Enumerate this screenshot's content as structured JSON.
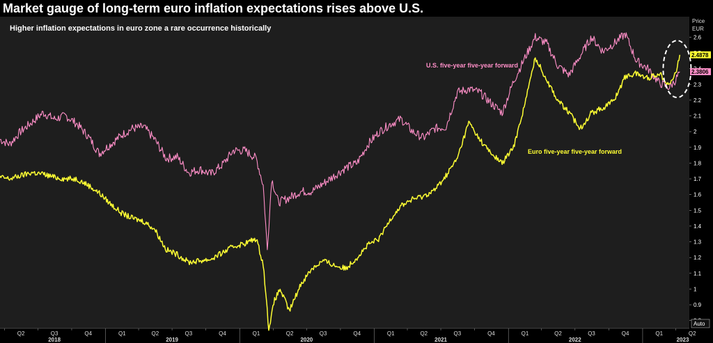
{
  "title": "Market gauge of long-term euro inflation expectations rises above U.S.",
  "colors": {
    "background": "#000000",
    "plot_bg": "#1e1e1e",
    "us": "#ff8fc8",
    "euro": "#ffff33",
    "text": "#ffffff"
  },
  "chart_data": {
    "type": "line",
    "title": "Market gauge of long-term euro inflation expectations rises above U.S.",
    "subtitle": "Higher inflation expectations in euro zone a rare occurrence historically",
    "ylabel": "Price",
    "yunit": "EUR",
    "ylim": [
      0.75,
      2.73
    ],
    "yticks": [
      0.8,
      0.9,
      1,
      1.1,
      1.2,
      1.3,
      1.4,
      1.5,
      1.6,
      1.7,
      1.8,
      1.9,
      2,
      2.1,
      2.2,
      2.3,
      2.4,
      2.5,
      2.6
    ],
    "xlim": [
      "2018-03-20",
      "2023-05-08"
    ],
    "x_quarter_ticks": [
      {
        "date": "2018-04-01",
        "label": "Q2"
      },
      {
        "date": "2018-07-01",
        "label": "Q3"
      },
      {
        "date": "2018-10-01",
        "label": "Q4"
      },
      {
        "date": "2019-01-01",
        "label": "Q1"
      },
      {
        "date": "2019-04-01",
        "label": "Q2"
      },
      {
        "date": "2019-07-01",
        "label": "Q3"
      },
      {
        "date": "2019-10-01",
        "label": "Q4"
      },
      {
        "date": "2020-01-01",
        "label": "Q1"
      },
      {
        "date": "2020-04-01",
        "label": "Q2"
      },
      {
        "date": "2020-07-01",
        "label": "Q3"
      },
      {
        "date": "2020-10-01",
        "label": "Q4"
      },
      {
        "date": "2021-01-01",
        "label": "Q1"
      },
      {
        "date": "2021-04-01",
        "label": "Q2"
      },
      {
        "date": "2021-07-01",
        "label": "Q3"
      },
      {
        "date": "2021-10-01",
        "label": "Q4"
      },
      {
        "date": "2022-01-01",
        "label": "Q1"
      },
      {
        "date": "2022-04-01",
        "label": "Q2"
      },
      {
        "date": "2022-07-01",
        "label": "Q3"
      },
      {
        "date": "2022-10-01",
        "label": "Q4"
      },
      {
        "date": "2023-01-01",
        "label": "Q1"
      },
      {
        "date": "2023-04-01",
        "label": "Q2"
      }
    ],
    "x_years": [
      "2018",
      "2019",
      "2020",
      "2021",
      "2022",
      "2023"
    ],
    "auto_label": "Auto",
    "grid": false,
    "series": [
      {
        "name": "U.S. five-year five-year forward",
        "color": "#ff8fc8",
        "last_value": "2.3806",
        "points": [
          [
            "2018-03-20",
            1.95
          ],
          [
            "2018-04-15",
            1.92
          ],
          [
            "2018-05-15",
            2.0
          ],
          [
            "2018-06-15",
            2.06
          ],
          [
            "2018-07-15",
            2.12
          ],
          [
            "2018-08-15",
            2.08
          ],
          [
            "2018-09-15",
            2.1
          ],
          [
            "2018-10-15",
            2.05
          ],
          [
            "2018-11-15",
            1.97
          ],
          [
            "2018-12-15",
            1.86
          ],
          [
            "2019-01-15",
            1.92
          ],
          [
            "2019-02-15",
            1.98
          ],
          [
            "2019-03-15",
            2.02
          ],
          [
            "2019-04-15",
            2.03
          ],
          [
            "2019-05-15",
            1.95
          ],
          [
            "2019-06-15",
            1.83
          ],
          [
            "2019-07-15",
            1.84
          ],
          [
            "2019-08-15",
            1.74
          ],
          [
            "2019-09-15",
            1.76
          ],
          [
            "2019-10-15",
            1.73
          ],
          [
            "2019-11-15",
            1.79
          ],
          [
            "2019-12-15",
            1.88
          ],
          [
            "2020-01-15",
            1.88
          ],
          [
            "2020-02-15",
            1.83
          ],
          [
            "2020-03-05",
            1.66
          ],
          [
            "2020-03-16",
            1.25
          ],
          [
            "2020-03-28",
            1.7
          ],
          [
            "2020-04-15",
            1.55
          ],
          [
            "2020-05-15",
            1.58
          ],
          [
            "2020-06-15",
            1.62
          ],
          [
            "2020-07-15",
            1.62
          ],
          [
            "2020-08-15",
            1.67
          ],
          [
            "2020-09-15",
            1.72
          ],
          [
            "2020-10-15",
            1.77
          ],
          [
            "2020-11-15",
            1.8
          ],
          [
            "2020-12-15",
            1.92
          ],
          [
            "2021-01-15",
            2.0
          ],
          [
            "2021-02-15",
            2.05
          ],
          [
            "2021-03-15",
            2.08
          ],
          [
            "2021-04-15",
            2.0
          ],
          [
            "2021-05-15",
            1.96
          ],
          [
            "2021-06-15",
            2.02
          ],
          [
            "2021-07-15",
            2.03
          ],
          [
            "2021-08-15",
            2.25
          ],
          [
            "2021-09-15",
            2.27
          ],
          [
            "2021-10-15",
            2.25
          ],
          [
            "2021-11-15",
            2.18
          ],
          [
            "2021-12-15",
            2.12
          ],
          [
            "2022-01-15",
            2.32
          ],
          [
            "2022-02-15",
            2.47
          ],
          [
            "2022-03-15",
            2.6
          ],
          [
            "2022-04-15",
            2.56
          ],
          [
            "2022-05-15",
            2.42
          ],
          [
            "2022-06-15",
            2.36
          ],
          [
            "2022-07-15",
            2.48
          ],
          [
            "2022-08-15",
            2.6
          ],
          [
            "2022-09-15",
            2.51
          ],
          [
            "2022-10-15",
            2.56
          ],
          [
            "2022-11-15",
            2.62
          ],
          [
            "2022-12-15",
            2.45
          ],
          [
            "2023-01-15",
            2.4
          ],
          [
            "2023-02-15",
            2.31
          ],
          [
            "2023-03-15",
            2.28
          ],
          [
            "2023-04-01",
            2.33
          ],
          [
            "2023-04-12",
            2.3806
          ]
        ]
      },
      {
        "name": "Euro five-year five-year forward",
        "color": "#ffff33",
        "last_value": "2.4878",
        "points": [
          [
            "2018-03-20",
            1.71
          ],
          [
            "2018-04-15",
            1.7
          ],
          [
            "2018-05-15",
            1.72
          ],
          [
            "2018-06-15",
            1.74
          ],
          [
            "2018-07-15",
            1.73
          ],
          [
            "2018-08-15",
            1.71
          ],
          [
            "2018-09-15",
            1.7
          ],
          [
            "2018-10-15",
            1.7
          ],
          [
            "2018-11-15",
            1.66
          ],
          [
            "2018-12-15",
            1.61
          ],
          [
            "2019-01-15",
            1.54
          ],
          [
            "2019-02-15",
            1.48
          ],
          [
            "2019-03-15",
            1.45
          ],
          [
            "2019-04-15",
            1.43
          ],
          [
            "2019-05-15",
            1.38
          ],
          [
            "2019-06-15",
            1.25
          ],
          [
            "2019-07-15",
            1.22
          ],
          [
            "2019-08-15",
            1.17
          ],
          [
            "2019-09-15",
            1.18
          ],
          [
            "2019-10-15",
            1.19
          ],
          [
            "2019-11-15",
            1.23
          ],
          [
            "2019-12-15",
            1.27
          ],
          [
            "2020-01-15",
            1.29
          ],
          [
            "2020-02-15",
            1.32
          ],
          [
            "2020-03-05",
            1.16
          ],
          [
            "2020-03-20",
            0.75
          ],
          [
            "2020-04-05",
            0.93
          ],
          [
            "2020-04-20",
            1.0
          ],
          [
            "2020-05-15",
            0.86
          ],
          [
            "2020-06-15",
            1.03
          ],
          [
            "2020-07-15",
            1.13
          ],
          [
            "2020-08-15",
            1.18
          ],
          [
            "2020-09-15",
            1.15
          ],
          [
            "2020-10-15",
            1.13
          ],
          [
            "2020-11-15",
            1.2
          ],
          [
            "2020-12-15",
            1.28
          ],
          [
            "2021-01-15",
            1.32
          ],
          [
            "2021-02-15",
            1.45
          ],
          [
            "2021-03-15",
            1.53
          ],
          [
            "2021-04-15",
            1.57
          ],
          [
            "2021-05-15",
            1.59
          ],
          [
            "2021-06-15",
            1.63
          ],
          [
            "2021-07-15",
            1.72
          ],
          [
            "2021-08-15",
            1.83
          ],
          [
            "2021-09-15",
            2.06
          ],
          [
            "2021-10-15",
            1.95
          ],
          [
            "2021-11-15",
            1.86
          ],
          [
            "2021-12-15",
            1.8
          ],
          [
            "2022-01-15",
            1.9
          ],
          [
            "2022-02-15",
            2.18
          ],
          [
            "2022-03-15",
            2.47
          ],
          [
            "2022-04-15",
            2.33
          ],
          [
            "2022-05-15",
            2.2
          ],
          [
            "2022-06-15",
            2.12
          ],
          [
            "2022-07-15",
            2.02
          ],
          [
            "2022-08-15",
            2.12
          ],
          [
            "2022-09-15",
            2.15
          ],
          [
            "2022-10-15",
            2.2
          ],
          [
            "2022-11-15",
            2.35
          ],
          [
            "2022-12-15",
            2.37
          ],
          [
            "2023-01-15",
            2.34
          ],
          [
            "2023-02-15",
            2.37
          ],
          [
            "2023-03-15",
            2.3
          ],
          [
            "2023-04-01",
            2.37
          ],
          [
            "2023-04-12",
            2.4878
          ]
        ]
      }
    ],
    "highlight": {
      "type": "dashed-ellipse",
      "date": "2023-04-01",
      "y": 2.38
    }
  }
}
